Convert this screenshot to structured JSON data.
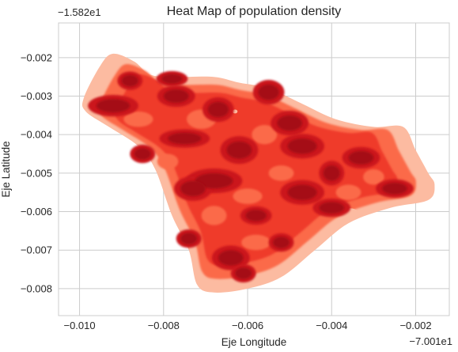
{
  "chart_data": {
    "type": "heatmap",
    "title": "Heat Map of population density",
    "xlabel": "Eje Longitude",
    "ylabel": "Eje Latitude",
    "x_offset_label": "−7.001e1",
    "y_offset_label": "−1.582e1",
    "xlim": [
      -0.0105,
      -0.0012
    ],
    "ylim": [
      -0.0087,
      -0.0011
    ],
    "x_ticks": [
      -0.01,
      -0.008,
      -0.006,
      -0.004,
      -0.002
    ],
    "x_tick_labels": [
      "−0.010",
      "−0.008",
      "−0.006",
      "−0.004",
      "−0.002"
    ],
    "y_ticks": [
      -0.002,
      -0.003,
      -0.004,
      -0.005,
      -0.006,
      -0.007,
      -0.008
    ],
    "y_tick_labels": [
      "−0.002",
      "−0.003",
      "−0.004",
      "−0.005",
      "−0.006",
      "−0.007",
      "−0.008"
    ],
    "grid": true,
    "legend": "none",
    "colormap": "Reds",
    "colors": {
      "level1": "#fcbba1",
      "level2": "#fb6a4a",
      "level3": "#ef3b2c",
      "level4": "#cb181d",
      "level5": "#a50f15",
      "grid": "#cccccc",
      "spine": "#cccccc",
      "text": "#262626"
    },
    "density_outline": [
      [
        -0.0099,
        -0.00305
      ],
      [
        -0.0095,
        -0.0022
      ],
      [
        -0.0092,
        -0.0019
      ],
      [
        -0.0087,
        -0.0021
      ],
      [
        -0.0083,
        -0.00245
      ],
      [
        -0.0076,
        -0.0025
      ],
      [
        -0.0068,
        -0.0025
      ],
      [
        -0.0062,
        -0.00265
      ],
      [
        -0.0055,
        -0.0028
      ],
      [
        -0.0047,
        -0.0032
      ],
      [
        -0.0039,
        -0.0036
      ],
      [
        -0.003,
        -0.0038
      ],
      [
        -0.0023,
        -0.0038
      ],
      [
        -0.002,
        -0.0044
      ],
      [
        -0.0017,
        -0.005
      ],
      [
        -0.00155,
        -0.0053
      ],
      [
        -0.0017,
        -0.0057
      ],
      [
        -0.0026,
        -0.0059
      ],
      [
        -0.0036,
        -0.0063
      ],
      [
        -0.0044,
        -0.007
      ],
      [
        -0.0052,
        -0.0077
      ],
      [
        -0.006,
        -0.008
      ],
      [
        -0.0068,
        -0.0081
      ],
      [
        -0.0072,
        -0.0079
      ],
      [
        -0.0074,
        -0.007
      ],
      [
        -0.0078,
        -0.0061
      ],
      [
        -0.0082,
        -0.0049
      ],
      [
        -0.0086,
        -0.0043
      ],
      [
        -0.0093,
        -0.0038
      ],
      [
        -0.00985,
        -0.0034
      ]
    ],
    "density_peaks": [
      {
        "x": -0.0092,
        "y": -0.00325,
        "w": 0.0008,
        "h": 0.00035
      },
      {
        "x": -0.0088,
        "y": -0.0026,
        "w": 0.0004,
        "h": 0.0003
      },
      {
        "x": -0.0085,
        "y": -0.0045,
        "w": 0.0004,
        "h": 0.0003
      },
      {
        "x": -0.0078,
        "y": -0.00255,
        "w": 0.0005,
        "h": 0.00025
      },
      {
        "x": -0.0077,
        "y": -0.003,
        "w": 0.0006,
        "h": 0.00035
      },
      {
        "x": -0.0075,
        "y": -0.0041,
        "w": 0.0008,
        "h": 0.0003
      },
      {
        "x": -0.0067,
        "y": -0.00335,
        "w": 0.0005,
        "h": 0.0004
      },
      {
        "x": -0.0068,
        "y": -0.0052,
        "w": 0.0009,
        "h": 0.0004
      },
      {
        "x": -0.0073,
        "y": -0.0054,
        "w": 0.0006,
        "h": 0.0004
      },
      {
        "x": -0.0062,
        "y": -0.0044,
        "w": 0.0006,
        "h": 0.00045
      },
      {
        "x": -0.0055,
        "y": -0.0029,
        "w": 0.0005,
        "h": 0.0004
      },
      {
        "x": -0.005,
        "y": -0.0037,
        "w": 0.0006,
        "h": 0.0004
      },
      {
        "x": -0.0047,
        "y": -0.0043,
        "w": 0.0007,
        "h": 0.0004
      },
      {
        "x": -0.0047,
        "y": -0.0055,
        "w": 0.0007,
        "h": 0.0004
      },
      {
        "x": -0.004,
        "y": -0.005,
        "w": 0.0004,
        "h": 0.0004
      },
      {
        "x": -0.0033,
        "y": -0.0046,
        "w": 0.0006,
        "h": 0.00035
      },
      {
        "x": -0.0025,
        "y": -0.0054,
        "w": 0.0006,
        "h": 0.0003
      },
      {
        "x": -0.004,
        "y": -0.0059,
        "w": 0.0006,
        "h": 0.0003
      },
      {
        "x": -0.0058,
        "y": -0.0061,
        "w": 0.0005,
        "h": 0.0003
      },
      {
        "x": -0.0074,
        "y": -0.0067,
        "w": 0.0004,
        "h": 0.0003
      },
      {
        "x": -0.0064,
        "y": -0.0072,
        "w": 0.0006,
        "h": 0.0004
      },
      {
        "x": -0.0061,
        "y": -0.0076,
        "w": 0.0004,
        "h": 0.0003
      },
      {
        "x": -0.0052,
        "y": -0.0068,
        "w": 0.0004,
        "h": 0.0003
      }
    ]
  }
}
